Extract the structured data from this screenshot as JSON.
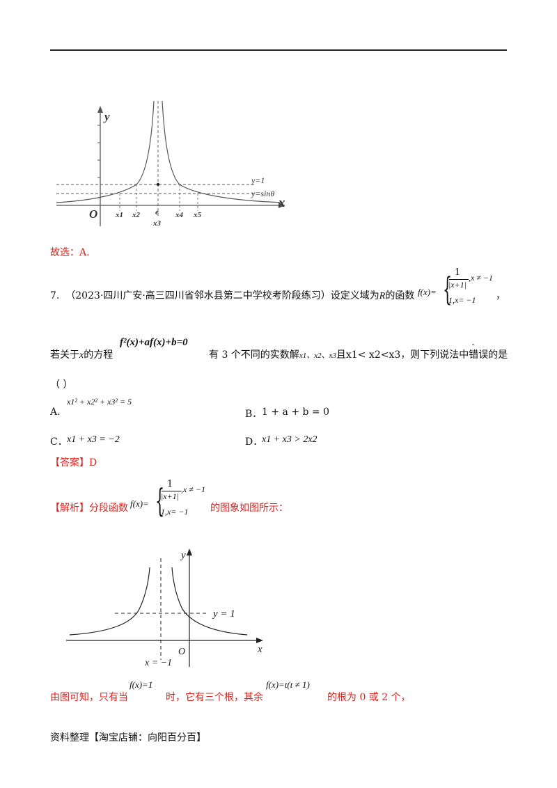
{
  "graph1": {
    "y_label": "y",
    "x_label": "x",
    "origin": "O",
    "line1": "y=1",
    "line2": "y=sinθ",
    "ticks": [
      "x1",
      "x2",
      "e",
      "x4",
      "x5"
    ],
    "tick_below_e": "x3"
  },
  "answer_prev": "故选：A.",
  "q7": {
    "number": "7.",
    "source": "（2023·四川广安·高三四川省邻水县第二中学校考阶段练习）设定义域为",
    "source_tail": "的函数",
    "R": "R",
    "fx": "f(x)=",
    "piece1_num": "1",
    "piece1_den": "|x+1|",
    "piece1_cond": ",x ≠ −1",
    "piece2": "1,x= −1",
    "comma": "，",
    "line2_pre": "若关于",
    "line2_x": "x",
    "line2_mid": "的方程",
    "equation": "f²(x)+af(x)+b=0",
    "line2_post": "有 3  个不同的实数解",
    "roots": "x1、x2、x3",
    "cond": "且x1< x2<x3，则下列说法中",
    "wrong_word": "错误",
    "tail": "的是",
    "paren": "（    ）"
  },
  "options": {
    "A_label": "A.",
    "A": "x1² + x2² + x3² = 5",
    "B_label": "B．",
    "B": "1 + a + b = 0",
    "C_label": "C．",
    "C": "x1 + x3 = −2",
    "D_label": "D．",
    "D": "x1 + x3 > 2x2"
  },
  "answer": "【答案】D",
  "analysis": {
    "label": "【解析】分段函数",
    "fx": "f(x)=",
    "piece1_num": "1",
    "piece1_den": "|x+1|",
    "piece1_cond": ",x ≠ −1",
    "piece2": "1,x= −1",
    "tail": "的图象如图所示："
  },
  "graph2": {
    "y_label": "y",
    "x_label": "x",
    "origin": "O",
    "line_label": "y = 1",
    "asymptote_label": "x = −1"
  },
  "conclusion": {
    "p1": "由图可知，只有当",
    "eq1": "f(x)=1",
    "p2": "时，它有三个根，其余",
    "eq2": "f(x)=t(t ≠ 1)",
    "p3": "的根为 0 或 2 个，"
  },
  "footer": "资料整理【淘宝店铺：向阳百分百】"
}
